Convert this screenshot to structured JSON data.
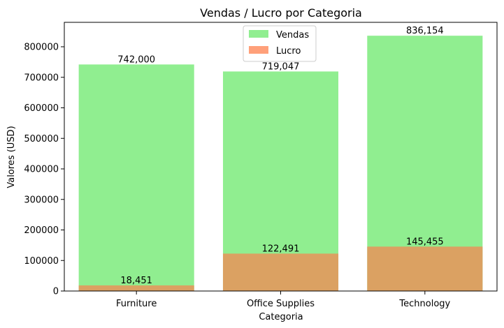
{
  "chart_data": {
    "type": "bar",
    "title": "Vendas / Lucro por Categoria",
    "xlabel": "Categoria",
    "ylabel": "Valores (USD)",
    "categories": [
      "Furniture",
      "Office Supplies",
      "Technology"
    ],
    "ylim": [
      0,
      880000
    ],
    "yticks": [
      0,
      100000,
      200000,
      300000,
      400000,
      500000,
      600000,
      700000,
      800000
    ],
    "overlay": true,
    "legend_position": "top-center",
    "series": [
      {
        "name": "Vendas",
        "color": "#90ee90",
        "values": [
          742000,
          719047,
          836154
        ],
        "value_labels": [
          "742,000",
          "719,047",
          "836,154"
        ]
      },
      {
        "name": "Lucro",
        "color": "#ffa07a",
        "overlap_color": "#dba162",
        "values": [
          18451,
          122491,
          145455
        ],
        "value_labels": [
          "18,451",
          "122,491",
          "145,455"
        ]
      }
    ]
  }
}
